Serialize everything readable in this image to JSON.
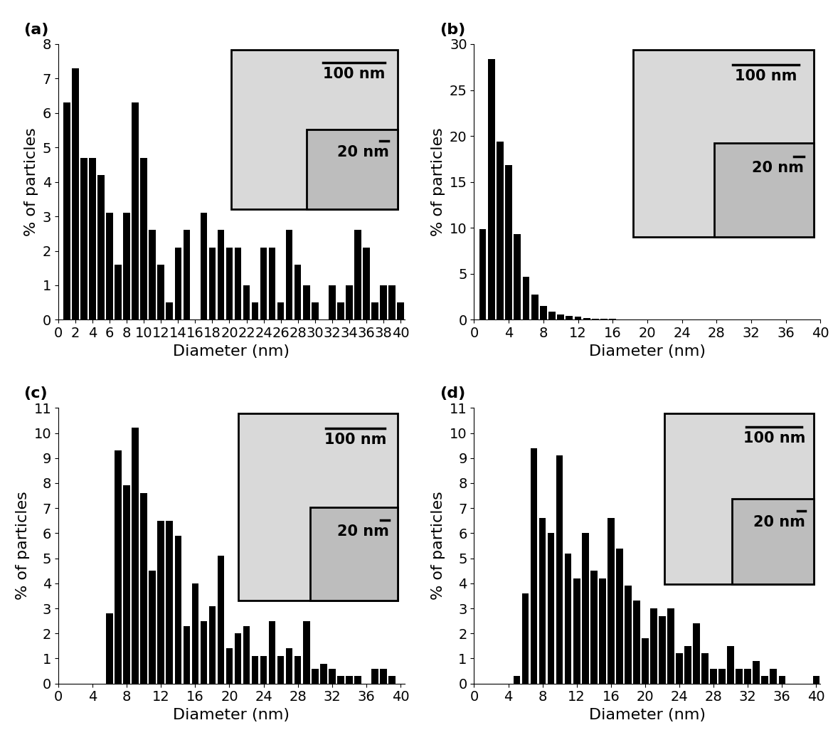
{
  "chart_data": [
    {
      "type": "bar",
      "title": "(a)",
      "x_label": "Diameter (nm)",
      "y_label": "% of particles",
      "color": "#000000",
      "x": [
        1,
        2,
        3,
        4,
        5,
        6,
        7,
        8,
        9,
        10,
        11,
        12,
        13,
        14,
        15,
        16,
        17,
        18,
        19,
        20,
        21,
        22,
        23,
        24,
        25,
        26,
        27,
        28,
        29,
        30,
        31,
        32,
        33,
        34,
        35,
        36,
        37,
        38,
        39,
        40
      ],
      "values": [
        6.3,
        7.3,
        4.7,
        4.7,
        4.2,
        3.1,
        1.6,
        3.1,
        6.3,
        4.7,
        2.6,
        1.6,
        0.5,
        2.1,
        2.6,
        0,
        3.1,
        2.1,
        2.6,
        2.1,
        2.1,
        1.0,
        0.5,
        2.1,
        2.1,
        0.5,
        2.6,
        1.6,
        1.0,
        0.5,
        0,
        1.0,
        0.5,
        1.0,
        2.6,
        2.1,
        0.5,
        1.0,
        1.0,
        0.5
      ],
      "xlim": [
        0,
        40.5
      ],
      "xticks": [
        0,
        2,
        4,
        6,
        8,
        10,
        12,
        14,
        16,
        18,
        20,
        22,
        24,
        26,
        28,
        30,
        32,
        34,
        36,
        38,
        40
      ],
      "ylim": [
        0,
        8
      ],
      "yticks": [
        0,
        1,
        2,
        3,
        4,
        5,
        6,
        7,
        8
      ],
      "annotations": [
        "100 nm",
        "20 nm"
      ]
    },
    {
      "type": "bar",
      "title": "(b)",
      "x_label": "Diameter (nm)",
      "y_label": "% of particles",
      "color": "#000000",
      "x": [
        1,
        2,
        3,
        4,
        5,
        6,
        7,
        8,
        9,
        10,
        11,
        12,
        13,
        14,
        15,
        16
      ],
      "values": [
        9.9,
        28.4,
        19.4,
        16.8,
        9.3,
        4.7,
        2.7,
        1.5,
        0.9,
        0.6,
        0.4,
        0.3,
        0.2,
        0.1,
        0.1,
        0.1
      ],
      "xlim": [
        0,
        40
      ],
      "xticks": [
        0,
        4,
        8,
        12,
        16,
        20,
        24,
        28,
        32,
        36,
        40
      ],
      "ylim": [
        0,
        30
      ],
      "yticks": [
        0,
        5,
        10,
        15,
        20,
        25,
        30
      ],
      "annotations": [
        "100 nm",
        "20 nm"
      ]
    },
    {
      "type": "bar",
      "title": "(c)",
      "x_label": "Diameter (nm)",
      "y_label": "% of particles",
      "color": "#000000",
      "x": [
        6,
        7,
        8,
        9,
        10,
        11,
        12,
        13,
        14,
        15,
        16,
        17,
        18,
        19,
        20,
        21,
        22,
        23,
        24,
        25,
        26,
        27,
        28,
        29,
        30,
        31,
        32,
        33,
        34,
        35,
        36,
        37,
        38,
        39
      ],
      "values": [
        2.8,
        9.3,
        7.9,
        10.2,
        7.6,
        4.5,
        6.5,
        6.5,
        5.9,
        2.3,
        4.0,
        2.5,
        3.1,
        5.1,
        1.4,
        2.0,
        2.3,
        1.1,
        1.1,
        2.5,
        1.1,
        1.4,
        1.1,
        2.5,
        0.6,
        0.8,
        0.6,
        0.3,
        0.3,
        0.3,
        0,
        0.6,
        0.6,
        0.3
      ],
      "xlim": [
        0,
        40.5
      ],
      "xticks": [
        0,
        4,
        8,
        12,
        16,
        20,
        24,
        28,
        32,
        36,
        40
      ],
      "ylim": [
        0,
        11
      ],
      "yticks": [
        0,
        1,
        2,
        3,
        4,
        5,
        6,
        7,
        8,
        9,
        10,
        11
      ],
      "annotations": [
        "100 nm",
        "20 nm"
      ]
    },
    {
      "type": "bar",
      "title": "(d)",
      "x_label": "Diameter (nm)",
      "y_label": "% of particles",
      "color": "#000000",
      "x": [
        5,
        6,
        7,
        8,
        9,
        10,
        11,
        12,
        13,
        14,
        15,
        16,
        17,
        18,
        19,
        20,
        21,
        22,
        23,
        24,
        25,
        26,
        27,
        28,
        29,
        30,
        31,
        32,
        33,
        34,
        35,
        36,
        37,
        38,
        39,
        40
      ],
      "values": [
        0.3,
        3.6,
        9.4,
        6.6,
        6.0,
        9.1,
        5.2,
        4.2,
        6.0,
        4.5,
        4.2,
        6.6,
        5.4,
        3.9,
        3.3,
        1.8,
        3.0,
        2.7,
        3.0,
        1.2,
        1.5,
        2.4,
        1.2,
        0.6,
        0.6,
        1.5,
        0.6,
        0.6,
        0.9,
        0.3,
        0.6,
        0.3,
        0,
        0,
        0,
        0.3
      ],
      "xlim": [
        0,
        40.5
      ],
      "xticks": [
        0,
        4,
        8,
        12,
        16,
        20,
        24,
        28,
        32,
        36,
        40
      ],
      "ylim": [
        0,
        11
      ],
      "yticks": [
        0,
        1,
        2,
        3,
        4,
        5,
        6,
        7,
        8,
        9,
        10,
        11
      ],
      "annotations": [
        "100 nm",
        "20 nm"
      ]
    }
  ]
}
